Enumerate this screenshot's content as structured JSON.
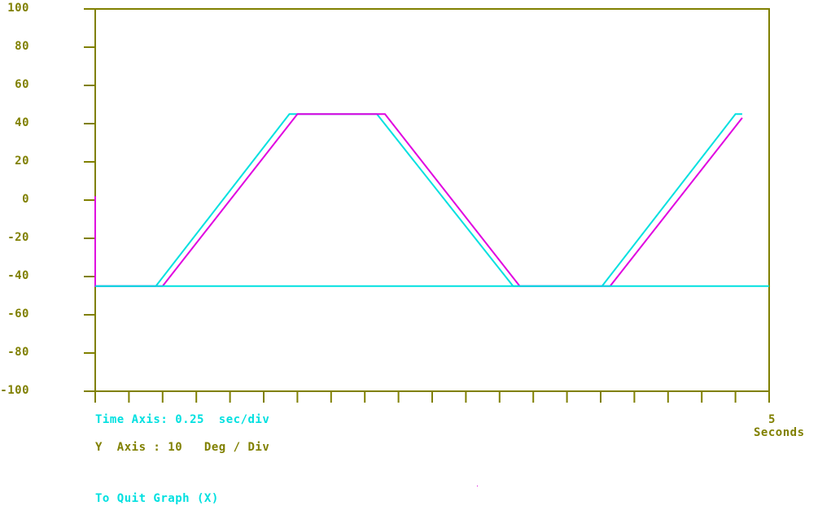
{
  "chart_data": {
    "type": "line",
    "ylim": [
      -100,
      100
    ],
    "xlim": [
      0,
      5
    ],
    "y_ticks": [
      "100",
      "80",
      "60",
      "40",
      "20",
      "0",
      "-20",
      "-40",
      "-60",
      "-80",
      "-100"
    ],
    "x_tick_count": 20,
    "x_end_label": {
      "value": "5",
      "unit": "Seconds"
    },
    "grid": false,
    "series": [
      {
        "color": "#00e0e0",
        "x": [
          0,
          0.45,
          1.44,
          2.09,
          3.1,
          3.76,
          4.75,
          4.8
        ],
        "y": [
          -45,
          -45,
          45,
          45,
          -45,
          -45,
          45,
          45
        ]
      },
      {
        "color": "#e000e0",
        "x": [
          0,
          0,
          0.5,
          1.5,
          2.15,
          3.15,
          3.82,
          4.8
        ],
        "y": [
          2,
          -45,
          -45,
          45,
          45,
          -45,
          -45,
          43
        ]
      },
      {
        "color": "#00e0e0",
        "x": [
          0,
          5
        ],
        "y": [
          -45,
          -45
        ]
      }
    ]
  },
  "info": {
    "time_axis_label": "Time Axis: 0.25  sec/div",
    "y_axis_label": "Y  Axis : 10   Deg / Div",
    "quit_label": "To Quit Graph (X)"
  },
  "colors": {
    "axis": "#808000",
    "cyan": "#00e0e0",
    "magenta": "#e000e0",
    "background": "#ffffff"
  }
}
